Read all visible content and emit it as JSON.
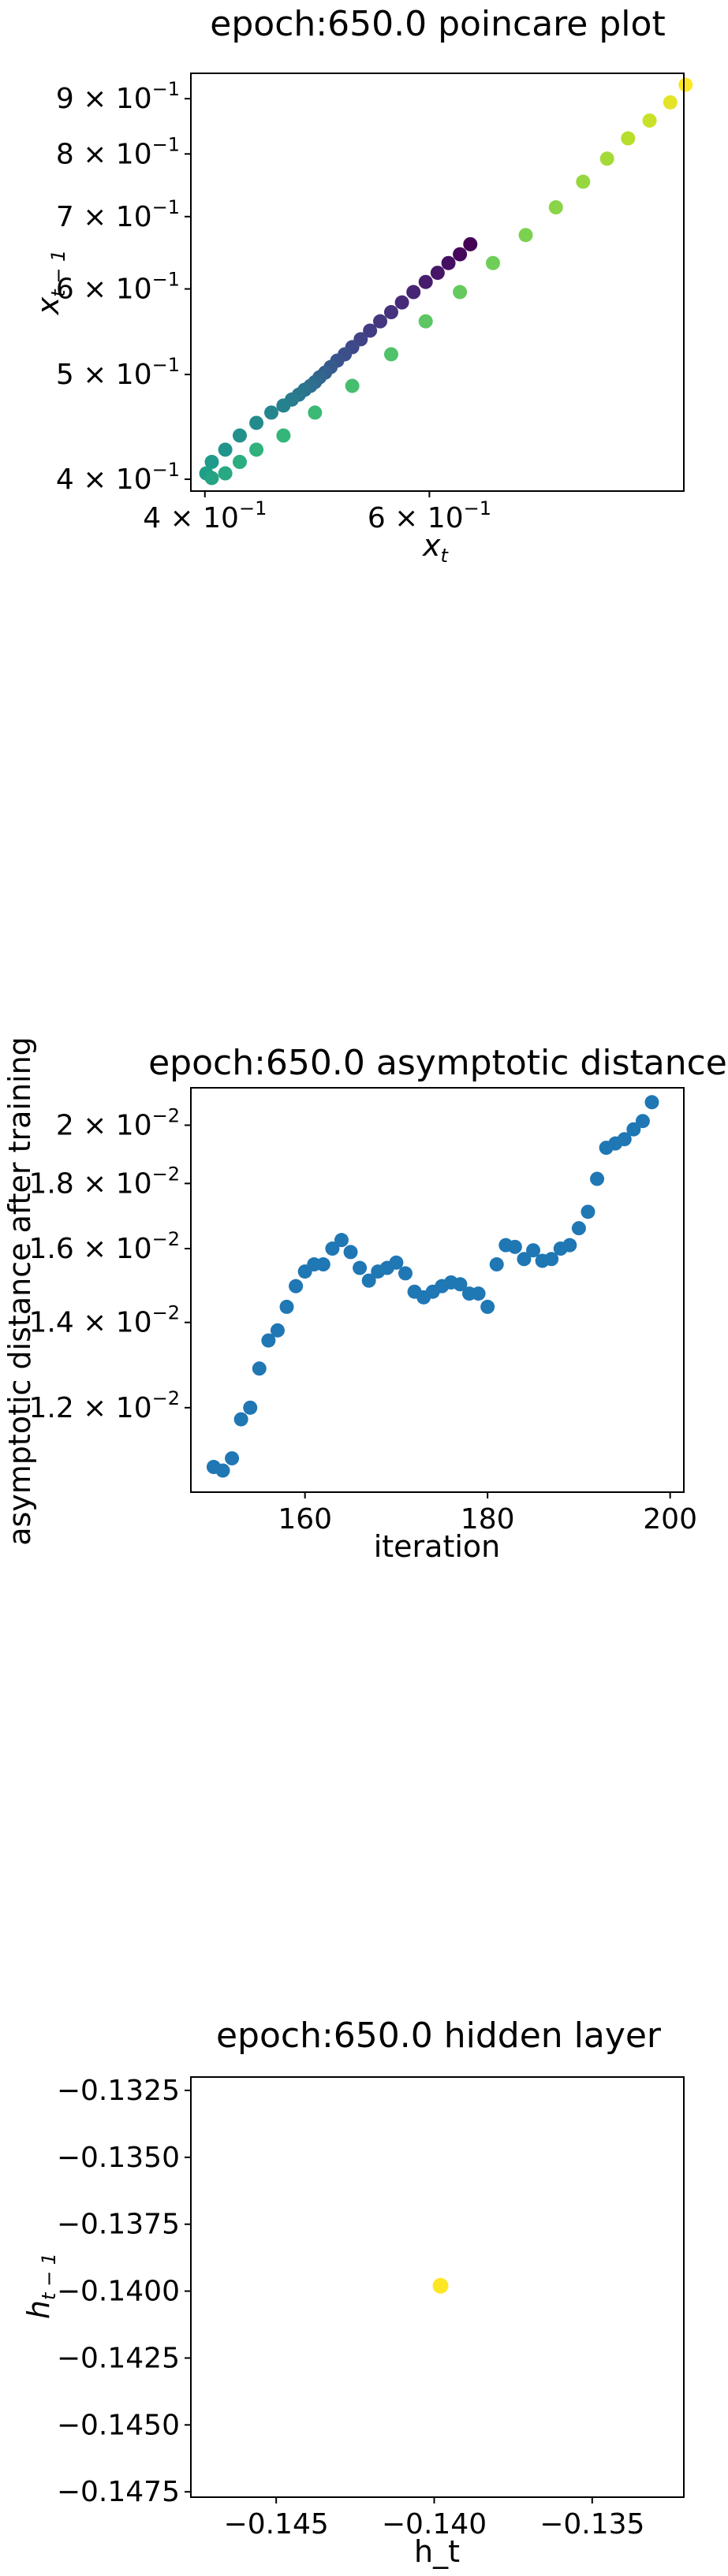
{
  "chart_data": [
    {
      "type": "scatter",
      "title": "epoch:650.0 poincare plot",
      "xlabel": "x",
      "xlabel_sub": "t",
      "ylabel": "x",
      "ylabel_sub": "t − 1",
      "xscale": "log",
      "yscale": "log",
      "xlim": [
        0.39,
        0.95
      ],
      "ylim": [
        0.39,
        0.95
      ],
      "colormap": "viridis",
      "xticks": [
        {
          "value": 0.4,
          "base": "4 × 10",
          "exp": "−1"
        },
        {
          "value": 0.6,
          "base": "6 × 10",
          "exp": "−1"
        }
      ],
      "yticks": [
        {
          "value": 0.4,
          "base": "4 × 10",
          "exp": "−1"
        },
        {
          "value": 0.5,
          "base": "5 × 10",
          "exp": "−1"
        },
        {
          "value": 0.6,
          "base": "6 × 10",
          "exp": "−1"
        },
        {
          "value": 0.7,
          "base": "7 × 10",
          "exp": "−1"
        },
        {
          "value": 0.8,
          "base": "8 × 10",
          "exp": "−1"
        },
        {
          "value": 0.9,
          "base": "9 × 10",
          "exp": "−1"
        }
      ],
      "points": [
        {
          "x": 0.646,
          "y": 0.66,
          "c": 0.0
        },
        {
          "x": 0.634,
          "y": 0.646,
          "c": 0.02
        },
        {
          "x": 0.621,
          "y": 0.634,
          "c": 0.04
        },
        {
          "x": 0.609,
          "y": 0.621,
          "c": 0.06
        },
        {
          "x": 0.596,
          "y": 0.609,
          "c": 0.08
        },
        {
          "x": 0.583,
          "y": 0.596,
          "c": 0.1
        },
        {
          "x": 0.571,
          "y": 0.583,
          "c": 0.12
        },
        {
          "x": 0.56,
          "y": 0.571,
          "c": 0.14
        },
        {
          "x": 0.549,
          "y": 0.56,
          "c": 0.16
        },
        {
          "x": 0.539,
          "y": 0.549,
          "c": 0.18
        },
        {
          "x": 0.53,
          "y": 0.539,
          "c": 0.2
        },
        {
          "x": 0.522,
          "y": 0.53,
          "c": 0.22
        },
        {
          "x": 0.515,
          "y": 0.522,
          "c": 0.24
        },
        {
          "x": 0.508,
          "y": 0.515,
          "c": 0.26
        },
        {
          "x": 0.502,
          "y": 0.508,
          "c": 0.28
        },
        {
          "x": 0.497,
          "y": 0.502,
          "c": 0.3
        },
        {
          "x": 0.492,
          "y": 0.497,
          "c": 0.32
        },
        {
          "x": 0.488,
          "y": 0.492,
          "c": 0.34
        },
        {
          "x": 0.484,
          "y": 0.488,
          "c": 0.36
        },
        {
          "x": 0.479,
          "y": 0.484,
          "c": 0.38
        },
        {
          "x": 0.474,
          "y": 0.479,
          "c": 0.4
        },
        {
          "x": 0.468,
          "y": 0.474,
          "c": 0.42
        },
        {
          "x": 0.461,
          "y": 0.468,
          "c": 0.44
        },
        {
          "x": 0.451,
          "y": 0.461,
          "c": 0.46
        },
        {
          "x": 0.439,
          "y": 0.451,
          "c": 0.48
        },
        {
          "x": 0.426,
          "y": 0.439,
          "c": 0.5
        },
        {
          "x": 0.415,
          "y": 0.426,
          "c": 0.52
        },
        {
          "x": 0.405,
          "y": 0.415,
          "c": 0.54
        },
        {
          "x": 0.401,
          "y": 0.405,
          "c": 0.56
        },
        {
          "x": 0.405,
          "y": 0.401,
          "c": 0.58
        },
        {
          "x": 0.415,
          "y": 0.405,
          "c": 0.6
        },
        {
          "x": 0.426,
          "y": 0.415,
          "c": 0.62
        },
        {
          "x": 0.439,
          "y": 0.426,
          "c": 0.64
        },
        {
          "x": 0.461,
          "y": 0.439,
          "c": 0.66
        },
        {
          "x": 0.488,
          "y": 0.461,
          "c": 0.68
        },
        {
          "x": 0.522,
          "y": 0.488,
          "c": 0.7
        },
        {
          "x": 0.56,
          "y": 0.522,
          "c": 0.72
        },
        {
          "x": 0.596,
          "y": 0.56,
          "c": 0.74
        },
        {
          "x": 0.634,
          "y": 0.596,
          "c": 0.76
        },
        {
          "x": 0.673,
          "y": 0.634,
          "c": 0.78
        },
        {
          "x": 0.714,
          "y": 0.673,
          "c": 0.8
        },
        {
          "x": 0.754,
          "y": 0.714,
          "c": 0.82
        },
        {
          "x": 0.792,
          "y": 0.754,
          "c": 0.84
        },
        {
          "x": 0.827,
          "y": 0.792,
          "c": 0.86
        },
        {
          "x": 0.859,
          "y": 0.827,
          "c": 0.89
        },
        {
          "x": 0.893,
          "y": 0.859,
          "c": 0.92
        },
        {
          "x": 0.927,
          "y": 0.893,
          "c": 0.96
        },
        {
          "x": 0.953,
          "y": 0.927,
          "c": 1.0
        }
      ]
    },
    {
      "type": "scatter",
      "title": "epoch:650.0 asymptotic distance",
      "xlabel": "iteration",
      "ylabel": "asymptotic distance after training",
      "xscale": "linear",
      "yscale": "log",
      "xlim": [
        147.5,
        201.5
      ],
      "ylim": [
        0.0103,
        0.0214
      ],
      "color": "#1f77b4",
      "xticks": [
        {
          "value": 160,
          "label": "160"
        },
        {
          "value": 180,
          "label": "180"
        },
        {
          "value": 200,
          "label": "200"
        }
      ],
      "yticks": [
        {
          "value": 0.012,
          "base": "1.2 × 10",
          "exp": "−2"
        },
        {
          "value": 0.014,
          "base": "1.4 × 10",
          "exp": "−2"
        },
        {
          "value": 0.016,
          "base": "1.6 × 10",
          "exp": "−2"
        },
        {
          "value": 0.018,
          "base": "1.8 × 10",
          "exp": "−2"
        },
        {
          "value": 0.02,
          "base": "2 × 10",
          "exp": "−2"
        }
      ],
      "points": [
        {
          "x": 150,
          "y": 0.01078
        },
        {
          "x": 151,
          "y": 0.01071
        },
        {
          "x": 152,
          "y": 0.01095
        },
        {
          "x": 153,
          "y": 0.01175
        },
        {
          "x": 154,
          "y": 0.012
        },
        {
          "x": 155,
          "y": 0.01288
        },
        {
          "x": 156,
          "y": 0.01355
        },
        {
          "x": 157,
          "y": 0.0138
        },
        {
          "x": 158,
          "y": 0.0144
        },
        {
          "x": 159,
          "y": 0.01495
        },
        {
          "x": 160,
          "y": 0.01535
        },
        {
          "x": 161,
          "y": 0.01555
        },
        {
          "x": 162,
          "y": 0.01555
        },
        {
          "x": 163,
          "y": 0.016
        },
        {
          "x": 164,
          "y": 0.01625
        },
        {
          "x": 165,
          "y": 0.0159
        },
        {
          "x": 166,
          "y": 0.01545
        },
        {
          "x": 167,
          "y": 0.0151
        },
        {
          "x": 168,
          "y": 0.01535
        },
        {
          "x": 169,
          "y": 0.01545
        },
        {
          "x": 170,
          "y": 0.0156
        },
        {
          "x": 171,
          "y": 0.0153
        },
        {
          "x": 172,
          "y": 0.0148
        },
        {
          "x": 173,
          "y": 0.01465
        },
        {
          "x": 174,
          "y": 0.0148
        },
        {
          "x": 175,
          "y": 0.01495
        },
        {
          "x": 176,
          "y": 0.01505
        },
        {
          "x": 177,
          "y": 0.015
        },
        {
          "x": 178,
          "y": 0.01475
        },
        {
          "x": 179,
          "y": 0.01475
        },
        {
          "x": 180,
          "y": 0.0144
        },
        {
          "x": 181,
          "y": 0.01555
        },
        {
          "x": 182,
          "y": 0.0161
        },
        {
          "x": 183,
          "y": 0.01605
        },
        {
          "x": 184,
          "y": 0.0157
        },
        {
          "x": 185,
          "y": 0.01595
        },
        {
          "x": 186,
          "y": 0.01565
        },
        {
          "x": 187,
          "y": 0.0157
        },
        {
          "x": 188,
          "y": 0.016
        },
        {
          "x": 189,
          "y": 0.0161
        },
        {
          "x": 190,
          "y": 0.0166
        },
        {
          "x": 191,
          "y": 0.0171
        },
        {
          "x": 192,
          "y": 0.01815
        },
        {
          "x": 193,
          "y": 0.0192
        },
        {
          "x": 194,
          "y": 0.01935
        },
        {
          "x": 195,
          "y": 0.0195
        },
        {
          "x": 196,
          "y": 0.01985
        },
        {
          "x": 197,
          "y": 0.02015
        },
        {
          "x": 198,
          "y": 0.02085
        }
      ]
    },
    {
      "type": "scatter",
      "title": "epoch:650.0 hidden layer",
      "xlabel": "h_t",
      "ylabel": "h",
      "ylabel_sub": "t − 1",
      "xscale": "linear",
      "yscale": "linear",
      "xlim": [
        -0.1477,
        -0.1321
      ],
      "ylim": [
        -0.1477,
        -0.132
      ],
      "xticks": [
        {
          "value": -0.145,
          "label": "−0.145"
        },
        {
          "value": -0.14,
          "label": "−0.140"
        },
        {
          "value": -0.135,
          "label": "−0.135"
        }
      ],
      "yticks": [
        {
          "value": -0.1325,
          "label": "−0.1325"
        },
        {
          "value": -0.135,
          "label": "−0.1350"
        },
        {
          "value": -0.1375,
          "label": "−0.1375"
        },
        {
          "value": -0.14,
          "label": "−0.1400"
        },
        {
          "value": -0.1425,
          "label": "−0.1425"
        },
        {
          "value": -0.145,
          "label": "−0.1450"
        },
        {
          "value": -0.1475,
          "label": "−0.1475"
        }
      ],
      "points": [
        {
          "x": -0.1398,
          "y": -0.1398,
          "color": "#fde725"
        }
      ]
    }
  ]
}
